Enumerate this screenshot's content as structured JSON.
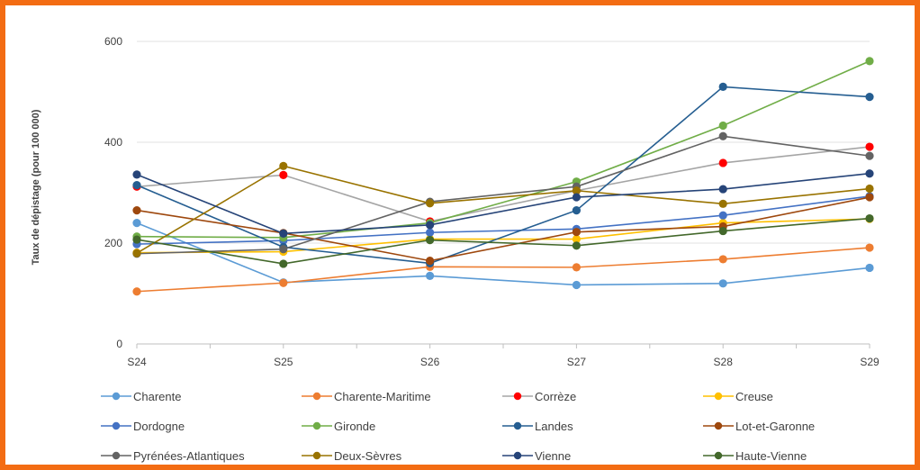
{
  "chart_data": {
    "type": "line",
    "title": "",
    "xlabel": "",
    "ylabel": "Taux de dépistage (pour 100 000)",
    "ylim": [
      0,
      600
    ],
    "yticks": [
      0,
      200,
      400,
      600
    ],
    "grid": true,
    "legend_position": "bottom",
    "categories": [
      "S24",
      "S25",
      "S26",
      "S27",
      "S28",
      "S29"
    ],
    "series": [
      {
        "name": "Charente",
        "color": "#5b9bd5",
        "values": [
          240,
          122,
          135,
          117,
          120,
          151
        ]
      },
      {
        "name": "Charente-Maritime",
        "color": "#ed7d31",
        "values": [
          104,
          121,
          153,
          152,
          168,
          191
        ]
      },
      {
        "name": "Corrèze",
        "color": "#a5a5a5",
        "marker_color": "#ff0000",
        "values": [
          312,
          335,
          243,
          304,
          359,
          391
        ]
      },
      {
        "name": "Creuse",
        "color": "#ffc000",
        "values": [
          181,
          183,
          208,
          208,
          240,
          248
        ]
      },
      {
        "name": "Dordogne",
        "color": "#4472c4",
        "values": [
          198,
          205,
          221,
          228,
          255,
          293
        ]
      },
      {
        "name": "Gironde",
        "color": "#70ad47",
        "values": [
          213,
          211,
          240,
          322,
          433,
          561
        ]
      },
      {
        "name": "Landes",
        "color": "#255e91",
        "values": [
          315,
          192,
          160,
          265,
          510,
          490
        ]
      },
      {
        "name": "Lot-et-Garonne",
        "color": "#9e480e",
        "values": [
          265,
          220,
          165,
          222,
          233,
          291
        ]
      },
      {
        "name": "Pyrénées-Atlantiques",
        "color": "#636363",
        "values": [
          179,
          188,
          282,
          312,
          412,
          373
        ]
      },
      {
        "name": "Deux-Sèvres",
        "color": "#997300",
        "values": [
          180,
          353,
          279,
          304,
          278,
          308
        ]
      },
      {
        "name": "Vienne",
        "color": "#264478",
        "values": [
          336,
          219,
          236,
          291,
          307,
          338
        ]
      },
      {
        "name": "Haute-Vienne",
        "color": "#43682b",
        "values": [
          207,
          159,
          206,
          195,
          224,
          249
        ]
      }
    ]
  }
}
